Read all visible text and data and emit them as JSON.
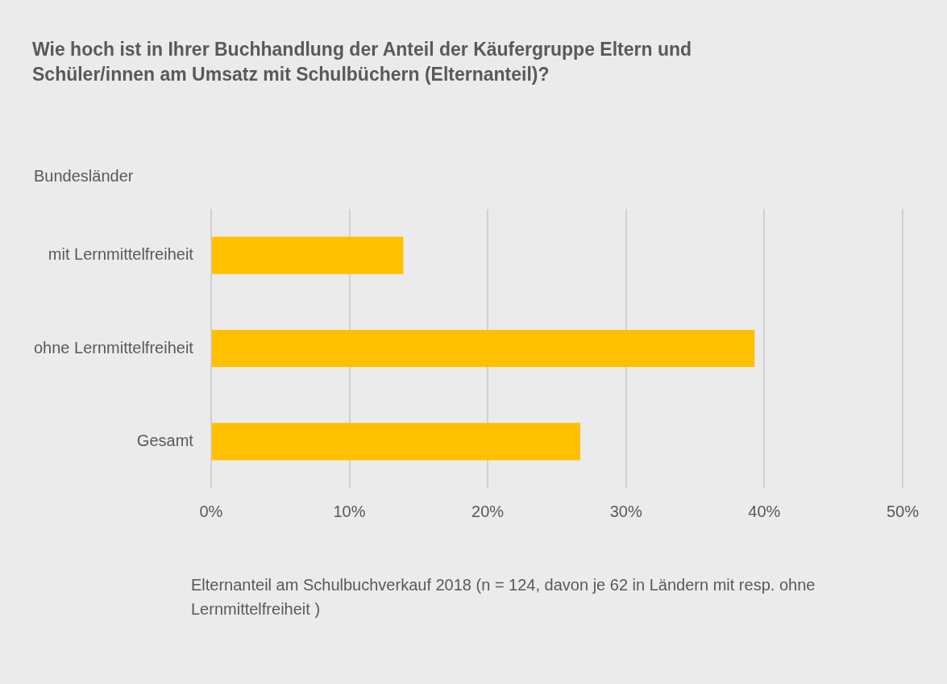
{
  "chart_data": {
    "type": "bar",
    "orientation": "horizontal",
    "title": "Wie hoch ist in Ihrer Buchhandlung der Anteil der Käufergruppe Eltern und Schüler/innen am Umsatz mit Schulbüchern (Elternanteil)?",
    "ylabel": "Bundesländer",
    "xlabel": "Elternanteil am Schulbuchverkauf 2018 (n = 124, davon je 62 in Ländern mit resp. ohne Lernmittelfreiheit )",
    "categories": [
      "mit Lernmittelfreiheit",
      "ohne Lernmittelfreiheit",
      "Gesamt"
    ],
    "values": [
      13.9,
      39.3,
      26.7
    ],
    "color": "#ffc000",
    "xlim": [
      0,
      50
    ],
    "xticks": [
      {
        "value": 0,
        "label": "0%"
      },
      {
        "value": 10,
        "label": "10%"
      },
      {
        "value": 20,
        "label": "20%"
      },
      {
        "value": 30,
        "label": "30%"
      },
      {
        "value": 40,
        "label": "40%"
      },
      {
        "value": 50,
        "label": "50%"
      }
    ],
    "grid": "x",
    "legend": false
  }
}
